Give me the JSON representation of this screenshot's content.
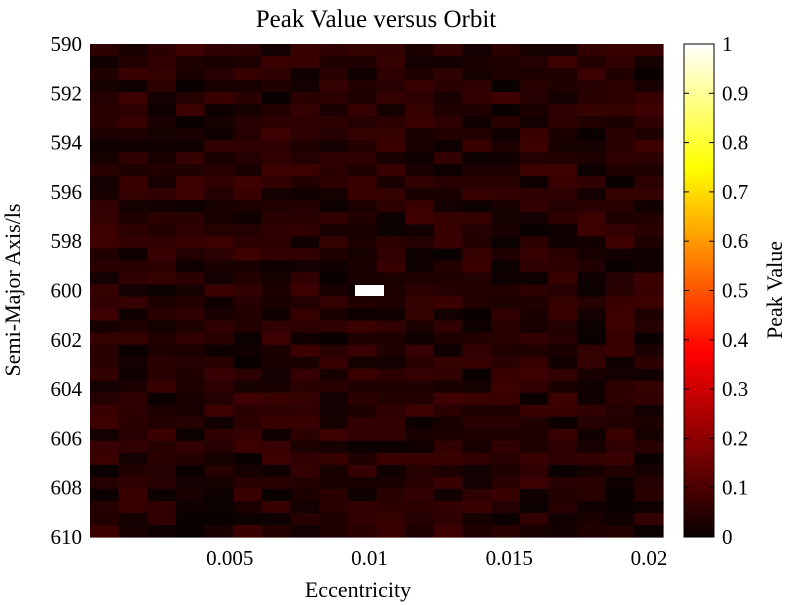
{
  "chart_data": {
    "type": "heatmap",
    "title": "Peak Value versus Orbit",
    "xlabel": "Eccentricity",
    "ylabel": "Semi-Major Axis/ls",
    "xlim": [
      0.0,
      0.0205
    ],
    "ylim": [
      590,
      610
    ],
    "y_reversed": true,
    "x_ticks": [
      0.005,
      0.01,
      0.015,
      0.02
    ],
    "x_tick_labels": [
      "0.005",
      "0.01",
      "0.015",
      "0.02"
    ],
    "y_ticks": [
      590,
      592,
      594,
      596,
      598,
      600,
      602,
      604,
      606,
      608,
      610
    ],
    "y_tick_labels": [
      "590",
      "592",
      "594",
      "596",
      "598",
      "600",
      "602",
      "604",
      "606",
      "608",
      "610"
    ],
    "grid": false,
    "background_level_range": [
      0.0,
      0.08
    ],
    "peak": {
      "eccentricity": 0.01,
      "semi_major_axis": 600,
      "value": 1.0
    },
    "colorbar": {
      "label": "Peak Value",
      "ticks": [
        0,
        0.1,
        0.2,
        0.3,
        0.4,
        0.5,
        0.6,
        0.7,
        0.8,
        0.9,
        1
      ],
      "tick_labels": [
        "0",
        "0.1",
        "0.2",
        "0.3",
        "0.4",
        "0.5",
        "0.6",
        "0.7",
        "0.8",
        "0.9",
        "1"
      ],
      "colormap": "hot"
    }
  }
}
